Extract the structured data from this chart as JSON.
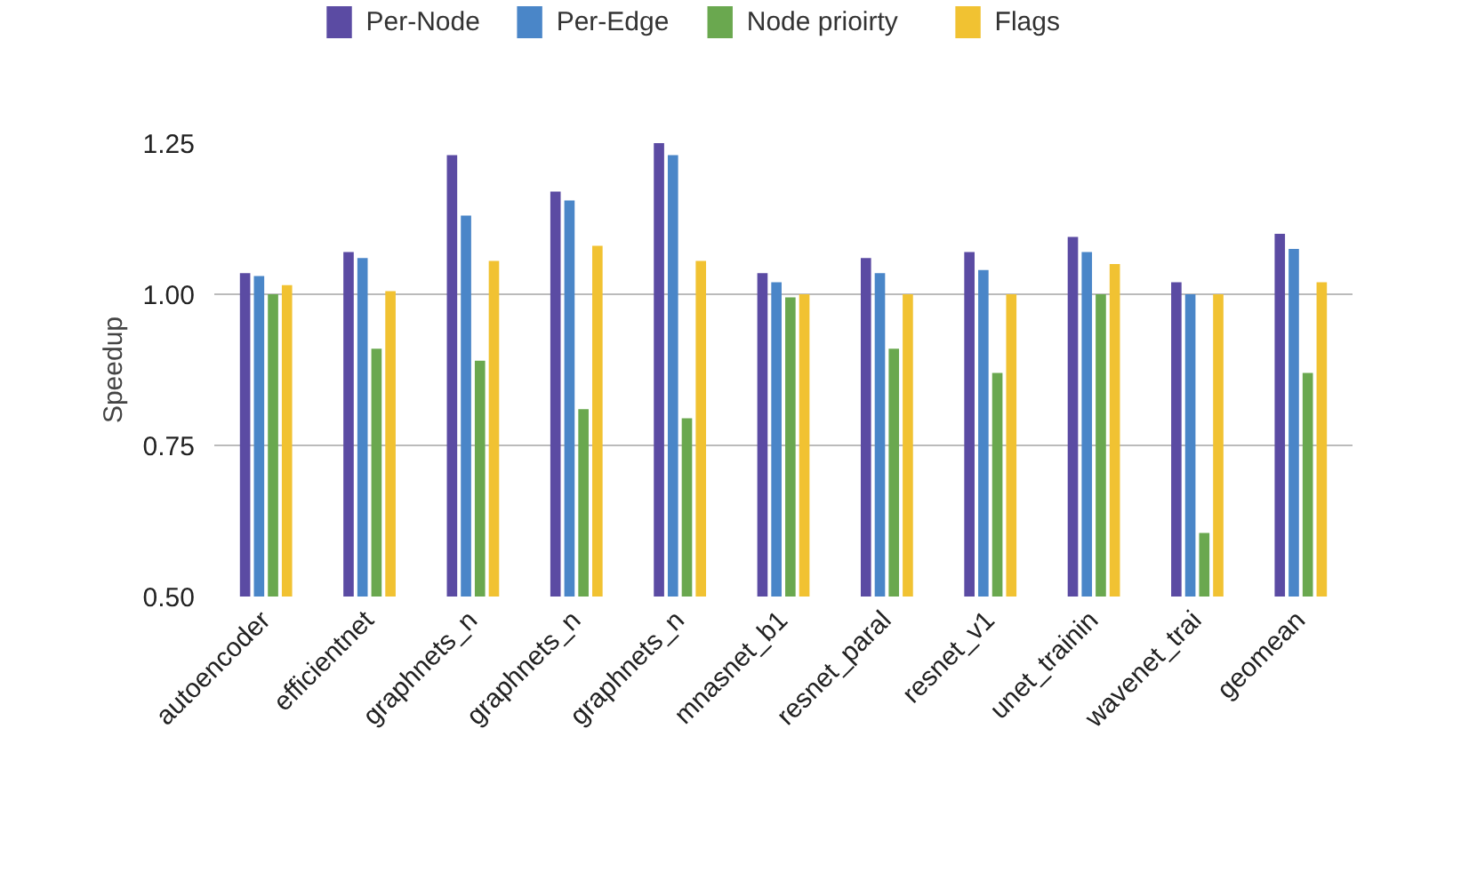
{
  "chart_data": {
    "type": "bar",
    "ylabel": "Speedup",
    "categories": [
      "autoencoder",
      "efficientnet",
      "graphnets_n",
      "graphnets_n",
      "graphnets_n",
      "mnasnet_b1",
      "resnet_paral",
      "resnet_v1",
      "unet_trainin",
      "wavenet_trai",
      "geomean"
    ],
    "series": [
      {
        "name": "Per-Node",
        "color": "#5b4ba3",
        "values": [
          1.035,
          1.07,
          1.23,
          1.17,
          1.25,
          1.035,
          1.06,
          1.07,
          1.095,
          1.02,
          1.1
        ]
      },
      {
        "name": "Per-Edge",
        "color": "#4a86c8",
        "values": [
          1.03,
          1.06,
          1.13,
          1.155,
          1.23,
          1.02,
          1.035,
          1.04,
          1.07,
          1.0,
          1.075
        ]
      },
      {
        "name": "Node prioirty",
        "color": "#6aa84f",
        "values": [
          1.0,
          0.91,
          0.89,
          0.81,
          0.795,
          0.995,
          0.91,
          0.87,
          1.0,
          0.605,
          0.87
        ]
      },
      {
        "name": "Flags",
        "color": "#f1c232",
        "values": [
          1.015,
          1.005,
          1.055,
          1.08,
          1.055,
          1.0,
          1.0,
          1.0,
          1.05,
          1.0,
          1.02
        ]
      }
    ],
    "ylim": [
      0.5,
      1.25
    ],
    "yticks": [
      {
        "value": 0.5,
        "label": "0.50"
      },
      {
        "value": 0.75,
        "label": "0.75"
      },
      {
        "value": 1.0,
        "label": "1.00"
      },
      {
        "value": 1.25,
        "label": "1.25"
      }
    ],
    "grid": "y",
    "legend": "top"
  }
}
